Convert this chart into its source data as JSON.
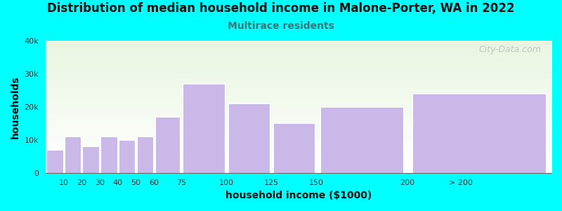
{
  "title": "Distribution of median household income in Malone-Porter, WA in 2022",
  "subtitle": "Multirace residents",
  "xlabel": "household income ($1000)",
  "ylabel": "households",
  "background_color": "#00FFFF",
  "plot_bg_top_color": "#e8f5e0",
  "plot_bg_bottom_color": "#ffffff",
  "bar_color": "#c9b8e8",
  "bar_edge_color": "#c9b8e8",
  "bar_left_edges": [
    0,
    10,
    20,
    30,
    40,
    50,
    60,
    75,
    100,
    125,
    150,
    200
  ],
  "bar_widths": [
    10,
    10,
    10,
    10,
    10,
    10,
    15,
    25,
    25,
    25,
    50,
    80
  ],
  "values": [
    7000,
    11000,
    8000,
    11000,
    10000,
    11000,
    17000,
    27000,
    21000,
    15000,
    20000,
    24000
  ],
  "xtick_positions": [
    10,
    20,
    30,
    40,
    50,
    60,
    75,
    100,
    125,
    150,
    200,
    230
  ],
  "xtick_labels": [
    "10",
    "20",
    "30",
    "40",
    "50",
    "60",
    "75",
    "100",
    "125",
    "150",
    "200",
    "> 200"
  ],
  "xlim": [
    0,
    280
  ],
  "ylim": [
    0,
    40000
  ],
  "yticks": [
    0,
    10000,
    20000,
    30000,
    40000
  ],
  "ytick_labels": [
    "0",
    "10k",
    "20k",
    "30k",
    "40k"
  ],
  "title_fontsize": 12,
  "subtitle_fontsize": 10,
  "axis_label_fontsize": 10,
  "tick_fontsize": 8,
  "watermark_text": "City-Data.com"
}
